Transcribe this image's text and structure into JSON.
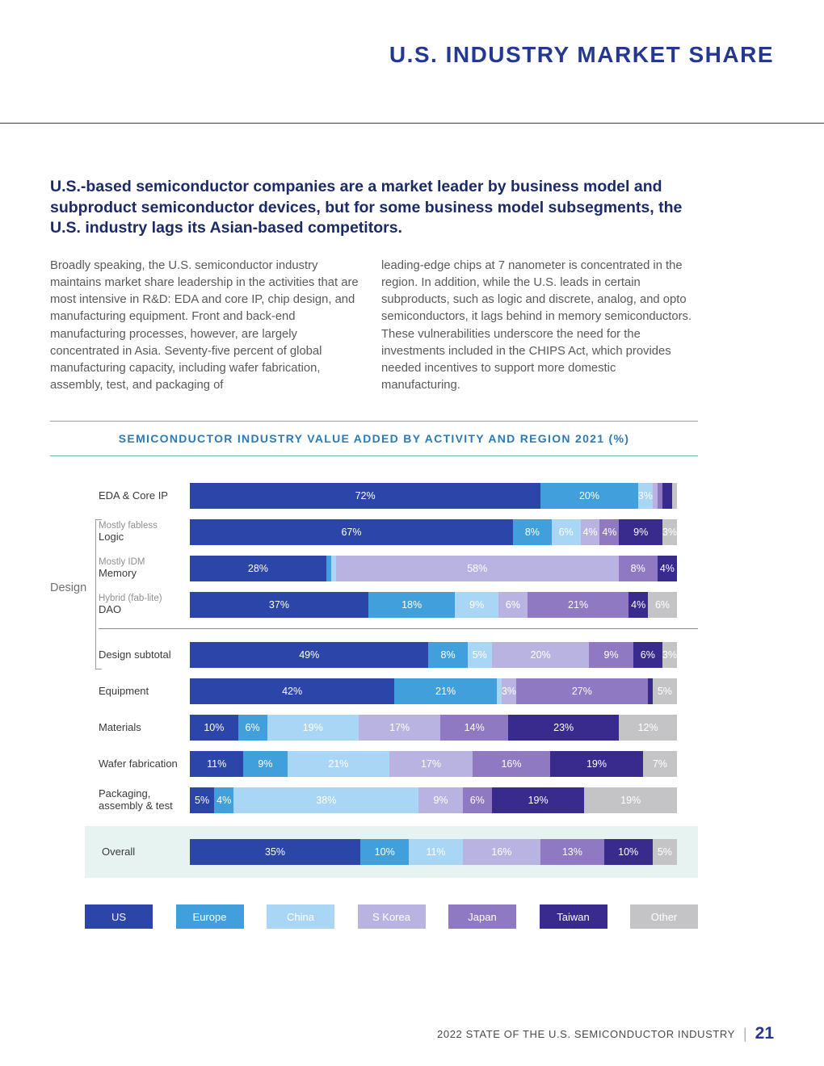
{
  "page": {
    "header_title": "U.S. INDUSTRY MARKET SHARE",
    "footer": {
      "text": "2022 STATE OF THE U.S. SEMICONDUCTOR INDUSTRY",
      "separator": "|",
      "page_number": "21"
    }
  },
  "intro": {
    "headline": "U.S.-based semiconductor companies are a market leader by business model and subproduct semiconductor devices, but for some business model subsegments, the U.S. industry lags its Asian-based competitors.",
    "col1": "Broadly speaking, the U.S. semiconductor industry maintains market share leadership in the activities that are most intensive in R&D: EDA and core IP, chip design, and manufacturing equipment. Front and back-end manufacturing processes, however, are largely concentrated in Asia. Seventy-five percent of global manufacturing capacity, including wafer fabrication, assembly, test, and packaging of",
    "col2": "leading-edge chips at 7 nanometer is concentrated in the region. In addition, while the U.S. leads in certain subproducts, such as logic and discrete, analog, and opto semiconductors, it lags behind in memory semiconductors. These vulnerabilities underscore the need for the investments included in the CHIPS Act, which provides needed incentives to support more domestic manufacturing."
  },
  "chart_data": {
    "type": "bar",
    "stacked": true,
    "orientation": "horizontal",
    "unit": "%",
    "xlim": [
      0,
      100
    ],
    "title": "SEMICONDUCTOR INDUSTRY VALUE ADDED BY ACTIVITY AND REGION 2021 (%)",
    "group_label": "Design",
    "legend": [
      {
        "name": "US",
        "color": "#2b46a8"
      },
      {
        "name": "Europe",
        "color": "#41a0dc"
      },
      {
        "name": "China",
        "color": "#a9d6f5"
      },
      {
        "name": "S Korea",
        "color": "#b9b3e2"
      },
      {
        "name": "Japan",
        "color": "#8e79c2"
      },
      {
        "name": "Taiwan",
        "color": "#392a8e"
      },
      {
        "name": "Other",
        "color": "#c4c4c6"
      }
    ],
    "rows": [
      {
        "label": "EDA & Core IP",
        "sublabel": "",
        "values": [
          72,
          20,
          3,
          1,
          1,
          2,
          1
        ],
        "labels": [
          "72%",
          "20%",
          "3%",
          "",
          "",
          "",
          ""
        ]
      },
      {
        "label": "Logic",
        "sublabel": "Mostly fabless",
        "values": [
          67,
          8,
          6,
          4,
          4,
          9,
          3
        ],
        "labels": [
          "67%",
          "8%",
          "6%",
          "4%",
          "4%",
          "9%",
          "3%"
        ]
      },
      {
        "label": "Memory",
        "sublabel": "Mostly IDM",
        "values": [
          28,
          1,
          1,
          58,
          8,
          4,
          0
        ],
        "labels": [
          "28%",
          "",
          "",
          "58%",
          "8%",
          "4%",
          ""
        ]
      },
      {
        "label": "DAO",
        "sublabel": "Hybrid (fab-lite)",
        "values": [
          37,
          18,
          9,
          6,
          21,
          4,
          6
        ],
        "labels": [
          "37%",
          "18%",
          "9%",
          "6%",
          "21%",
          "4%",
          "6%"
        ]
      },
      {
        "label": "Design subtotal",
        "sublabel": "",
        "separator_above": true,
        "values": [
          49,
          8,
          5,
          20,
          9,
          6,
          3
        ],
        "labels": [
          "49%",
          "8%",
          "5%",
          "20%",
          "9%",
          "6%",
          "3%"
        ]
      },
      {
        "label": "Equipment",
        "sublabel": "",
        "values": [
          42,
          21,
          1,
          3,
          27,
          1,
          5
        ],
        "labels": [
          "42%",
          "21%",
          "",
          "3%",
          "27%",
          "",
          "5%"
        ]
      },
      {
        "label": "Materials",
        "sublabel": "",
        "values": [
          10,
          6,
          19,
          17,
          14,
          23,
          12
        ],
        "labels": [
          "10%",
          "6%",
          "19%",
          "17%",
          "14%",
          "23%",
          "12%"
        ]
      },
      {
        "label": "Wafer fabrication",
        "sublabel": "",
        "values": [
          11,
          9,
          21,
          17,
          16,
          19,
          7
        ],
        "labels": [
          "11%",
          "9%",
          "21%",
          "17%",
          "16%",
          "19%",
          "7%"
        ]
      },
      {
        "label": "Packaging, assembly & test",
        "sublabel": "",
        "values": [
          5,
          4,
          38,
          9,
          6,
          19,
          19
        ],
        "labels": [
          "5%",
          "4%",
          "38%",
          "9%",
          "6%",
          "19%",
          "19%"
        ]
      },
      {
        "label": "Overall",
        "sublabel": "",
        "overall": true,
        "values": [
          35,
          10,
          11,
          16,
          13,
          10,
          5
        ],
        "labels": [
          "35%",
          "10%",
          "11%",
          "16%",
          "13%",
          "10%",
          "5%"
        ]
      }
    ]
  }
}
